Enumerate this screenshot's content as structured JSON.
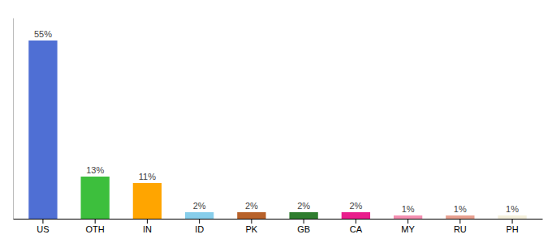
{
  "chart_data": {
    "type": "bar",
    "categories": [
      "US",
      "OTH",
      "IN",
      "ID",
      "PK",
      "GB",
      "CA",
      "MY",
      "RU",
      "PH"
    ],
    "values": [
      55,
      13,
      11,
      2,
      2,
      2,
      2,
      1,
      1,
      1
    ],
    "value_labels": [
      "55%",
      "13%",
      "11%",
      "2%",
      "2%",
      "2%",
      "2%",
      "1%",
      "1%",
      "1%"
    ],
    "colors": [
      "#4F6FD4",
      "#3DBF3D",
      "#FFA500",
      "#87CEEB",
      "#B8622A",
      "#2E7D2E",
      "#E91E8C",
      "#F48FB1",
      "#E8A090",
      "#F5F0DC"
    ],
    "ylim": [
      0,
      62
    ],
    "grid": false,
    "data_labels": true,
    "tick_labels": "x"
  }
}
